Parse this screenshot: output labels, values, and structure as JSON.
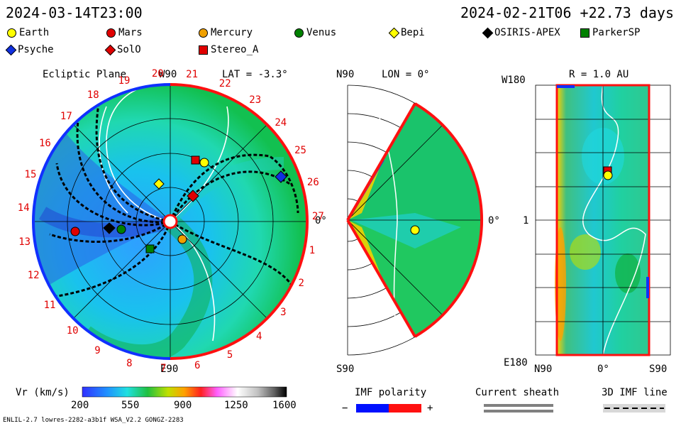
{
  "header": {
    "left_datetime": "2024-03-14T23:00",
    "right_datetime": "2024-02-21T06  +22.73 days"
  },
  "legend": [
    {
      "label": "Earth",
      "color": "#ffff00",
      "shape": "circle"
    },
    {
      "label": "Mars",
      "color": "#e00000",
      "shape": "circle"
    },
    {
      "label": "Mercury",
      "color": "#f0a000",
      "shape": "circle"
    },
    {
      "label": "Venus",
      "color": "#008000",
      "shape": "circle"
    },
    {
      "label": "Bepi",
      "color": "#ffff00",
      "shape": "diamond"
    },
    {
      "label": "OSIRIS-APEX",
      "color": "#000000",
      "shape": "diamond"
    },
    {
      "label": "ParkerSP",
      "color": "#008000",
      "shape": "square"
    },
    {
      "label": "Psyche",
      "color": "#1030e0",
      "shape": "diamond"
    },
    {
      "label": "SolO",
      "color": "#e00000",
      "shape": "diamond"
    },
    {
      "label": "Stereo_A",
      "color": "#e00000",
      "shape": "square"
    }
  ],
  "panels": {
    "ecliptic": {
      "title": "Ecliptic Plane",
      "top_label": "W90",
      "bottom_label": "E90",
      "right_label": "0°",
      "lat_text": "LAT = -3.3°",
      "rotation_numbers": [
        "20",
        "21",
        "22",
        "23",
        "24",
        "25",
        "26",
        "27",
        "1",
        "2",
        "3",
        "4",
        "5",
        "6",
        "7",
        "8",
        "9",
        "10",
        "11",
        "12",
        "13",
        "14",
        "15",
        "16",
        "17",
        "18",
        "19"
      ]
    },
    "meridional": {
      "top_left": "N90",
      "bottom_left": "S90",
      "lon_text": "LON = 0°",
      "right_label": "0°"
    },
    "radial": {
      "r_text": "R = 1.0 AU",
      "top_left": "W180",
      "mid_left": "1",
      "bottom_left": "E180",
      "bottom_ticks": [
        "N90",
        "0°",
        "S90"
      ]
    }
  },
  "colorbar": {
    "label": "Vr (km/s)",
    "ticks": [
      "200",
      "550",
      "900",
      "1250",
      "1600"
    ],
    "range": [
      200,
      1600
    ]
  },
  "imf": {
    "title": "IMF polarity",
    "minus": "−",
    "plus": "+",
    "negative_color": "#0010ff",
    "positive_color": "#ff1010"
  },
  "sheath": {
    "title": "Current sheath"
  },
  "imf3d": {
    "title": "3D IMF line"
  },
  "footer": {
    "model_info": "ENLIL-2.7 lowres-2282-a3b1f WSA_V2.2 GONGZ-2283"
  }
}
